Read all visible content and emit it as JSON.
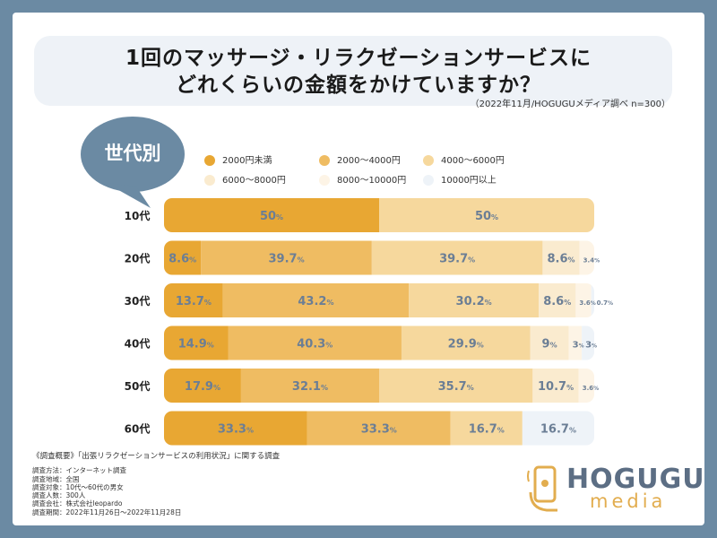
{
  "title": {
    "line1": "1回のマッサージ・リラクゼーションサービスに",
    "line2": "どれくらいの金額をかけていますか？",
    "note": "（2022年11月/HOGUGUメディア調べ n=300）"
  },
  "bubble_label": "世代別",
  "colors": {
    "background": "#6b8aa3",
    "segments": [
      "#e8a733",
      "#efbc62",
      "#f6d89d",
      "#faebcf",
      "#fdf4e6",
      "#eef3f8"
    ],
    "value_text": "#6b7e95"
  },
  "chart_data": {
    "type": "bar",
    "orientation": "horizontal-stacked-percent",
    "categories": [
      "10代",
      "20代",
      "30代",
      "40代",
      "50代",
      "60代"
    ],
    "series": [
      {
        "name": "2000円未満",
        "values": [
          50,
          8.6,
          13.7,
          14.9,
          17.9,
          33.3
        ]
      },
      {
        "name": "2000〜4000円",
        "values": [
          0,
          39.7,
          43.2,
          40.3,
          32.1,
          33.3
        ]
      },
      {
        "name": "4000〜6000円",
        "values": [
          50,
          39.7,
          30.2,
          29.9,
          35.7,
          16.7
        ]
      },
      {
        "name": "6000〜8000円",
        "values": [
          0,
          8.6,
          8.6,
          9,
          10.7,
          0
        ]
      },
      {
        "name": "8000〜10000円",
        "values": [
          0,
          3.4,
          3.6,
          3,
          3.6,
          0
        ]
      },
      {
        "name": "10000円以上",
        "values": [
          0,
          0,
          0.7,
          3,
          0,
          16.7
        ]
      }
    ],
    "labels": [
      [
        "50",
        "",
        "50",
        "",
        "",
        ""
      ],
      [
        "8.6",
        "39.7",
        "39.7",
        "8.6",
        "3.4",
        ""
      ],
      [
        "13.7",
        "43.2",
        "30.2",
        "8.6",
        "3.6",
        "0.7"
      ],
      [
        "14.9",
        "40.3",
        "29.9",
        "9",
        "3",
        "3"
      ],
      [
        "17.9",
        "32.1",
        "35.7",
        "10.7",
        "3.6",
        ""
      ],
      [
        "33.3",
        "33.3",
        "16.7",
        "",
        "",
        "16.7"
      ]
    ],
    "unit": "%",
    "xlim": [
      0,
      100
    ]
  },
  "footer": {
    "heading": "《調査概要》「出張リラクゼーションサービスの利用状況」に関する調査",
    "lines": [
      "調査方法：インターネット調査",
      "調査地域：全国",
      "調査対象：10代〜60代の男女",
      "調査人数：300人",
      "調査会社：株式会社leopardo",
      "調査期間：2022年11月26日〜2022年11月28日"
    ]
  },
  "logo": {
    "word": "HOGUGU",
    "sub": "media"
  }
}
